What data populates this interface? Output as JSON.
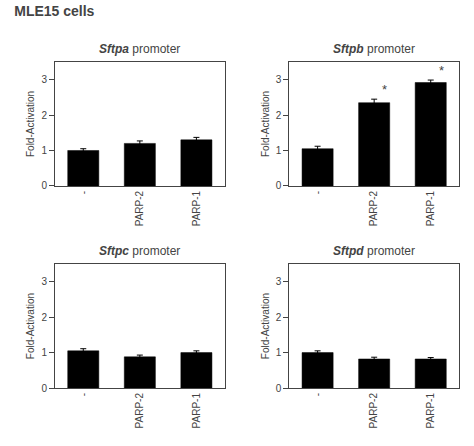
{
  "title": "MLE15 cells",
  "chart_data": [
    {
      "type": "bar",
      "title": "Sftpa promoter",
      "categories": [
        "-",
        "PARP-2",
        "PARP-1"
      ],
      "values": [
        1.0,
        1.2,
        1.3
      ],
      "errors": [
        0.05,
        0.07,
        0.07
      ],
      "color": "#000000",
      "ylabel": "Fold-Activation",
      "ylim": [
        0,
        3.5
      ],
      "yticks": [
        0,
        1,
        2,
        3
      ],
      "grid": false
    },
    {
      "type": "bar",
      "title": "Sftpb promoter",
      "categories": [
        "-",
        "PARP-2",
        "PARP-1"
      ],
      "values": [
        1.05,
        2.35,
        2.92
      ],
      "errors": [
        0.07,
        0.1,
        0.07
      ],
      "color": "#000000",
      "ylabel": "Fold-Activation",
      "ylim": [
        0,
        3.5
      ],
      "yticks": [
        0,
        1,
        2,
        3
      ],
      "grid": false,
      "annotations": [
        {
          "category": "PARP-2",
          "text": "*"
        },
        {
          "category": "PARP-1",
          "text": "*"
        }
      ]
    },
    {
      "type": "bar",
      "title": "Sftpc promoter",
      "categories": [
        "-",
        "PARP-2",
        "PARP-1"
      ],
      "values": [
        1.05,
        0.88,
        1.0
      ],
      "errors": [
        0.06,
        0.05,
        0.05
      ],
      "color": "#000000",
      "ylabel": "Fold-Activation",
      "ylim": [
        0,
        3.5
      ],
      "yticks": [
        0,
        1,
        2,
        3
      ],
      "grid": false
    },
    {
      "type": "bar",
      "title": "Sftpd promoter",
      "categories": [
        "-",
        "PARP-2",
        "PARP-1"
      ],
      "values": [
        1.0,
        0.82,
        0.82
      ],
      "errors": [
        0.05,
        0.05,
        0.04
      ],
      "color": "#000000",
      "ylabel": "Fold-Activation",
      "ylim": [
        0,
        3.5
      ],
      "yticks": [
        0,
        1,
        2,
        3
      ],
      "grid": false
    }
  ]
}
